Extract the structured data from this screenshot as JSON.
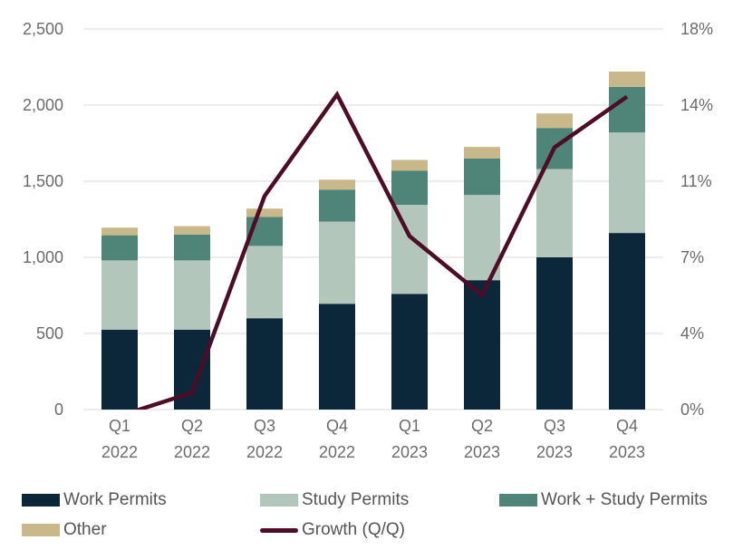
{
  "chart_data": {
    "type": "bar",
    "stacked": true,
    "categories": [
      [
        "Q1",
        "2022"
      ],
      [
        "Q2",
        "2022"
      ],
      [
        "Q3",
        "2022"
      ],
      [
        "Q4",
        "2022"
      ],
      [
        "Q1",
        "2023"
      ],
      [
        "Q2",
        "2023"
      ],
      [
        "Q3",
        "2023"
      ],
      [
        "Q4",
        "2023"
      ]
    ],
    "series": [
      {
        "name": "Work Permits",
        "color": "#0c2739",
        "values": [
          525,
          525,
          600,
          695,
          760,
          850,
          1000,
          1160
        ]
      },
      {
        "name": "Study Permits",
        "color": "#b2c6bc",
        "values": [
          455,
          455,
          475,
          540,
          585,
          560,
          580,
          660
        ]
      },
      {
        "name": "Work + Study Permits",
        "color": "#4f8479",
        "values": [
          165,
          170,
          190,
          210,
          225,
          240,
          270,
          300
        ]
      },
      {
        "name": "Other",
        "color": "#c8b88a",
        "values": [
          50,
          55,
          55,
          65,
          70,
          75,
          95,
          100
        ]
      }
    ],
    "line_series": {
      "name": "Growth (Q/Q)",
      "color": "#4e0d27",
      "axis": "right",
      "values": [
        -0.3,
        0.8,
        10.1,
        14.9,
        8.2,
        5.4,
        12.4,
        14.8
      ]
    },
    "y_left": {
      "min": 0,
      "max": 2500,
      "ticks": [
        0,
        500,
        1000,
        1500,
        2000,
        2500
      ],
      "labels": [
        "0",
        "500",
        "1,000",
        "1,500",
        "2,000",
        "2,500"
      ]
    },
    "y_right": {
      "min": 0,
      "max": 18,
      "ticks": [
        0,
        3.6,
        7.2,
        10.8,
        14.4,
        18
      ],
      "labels": [
        "0%",
        "4%",
        "7%",
        "11%",
        "14%",
        "18%"
      ]
    },
    "grid": true,
    "legend_position": "bottom",
    "title": "",
    "xlabel": "",
    "ylabel": ""
  }
}
